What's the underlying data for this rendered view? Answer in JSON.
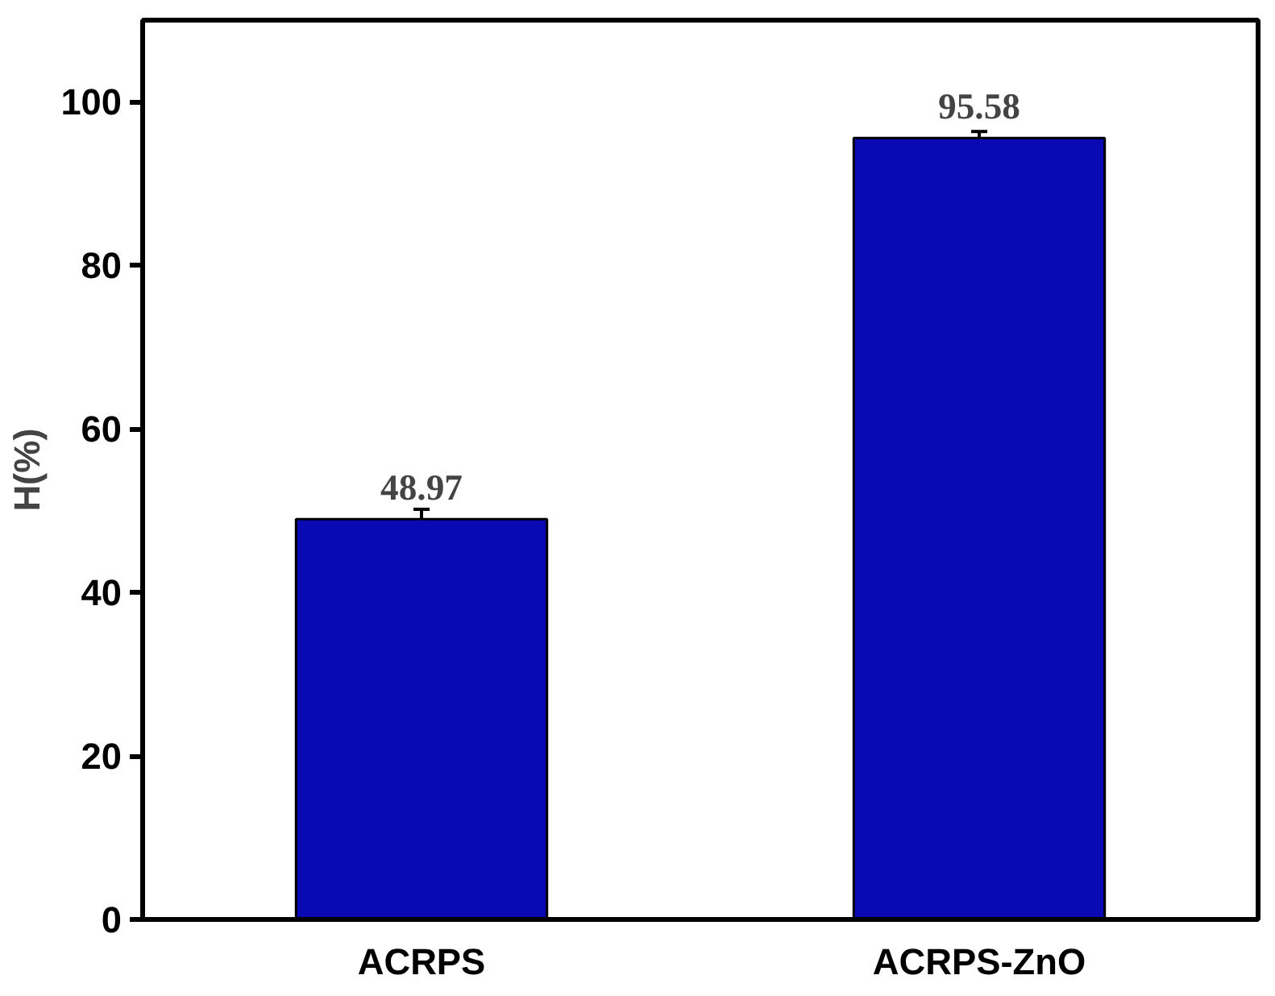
{
  "chart_data": {
    "type": "bar",
    "ylabel": "H(%)",
    "categories": [
      "ACRPS",
      "ACRPS-ZnO"
    ],
    "values": [
      48.97,
      95.58
    ],
    "color": "#0a0ab4",
    "errors": [
      1.2,
      0.8
    ],
    "data_labels": true,
    "ylim": [
      0,
      110
    ],
    "yticks": [
      0,
      20,
      40,
      60,
      80,
      100
    ],
    "grid": false
  }
}
